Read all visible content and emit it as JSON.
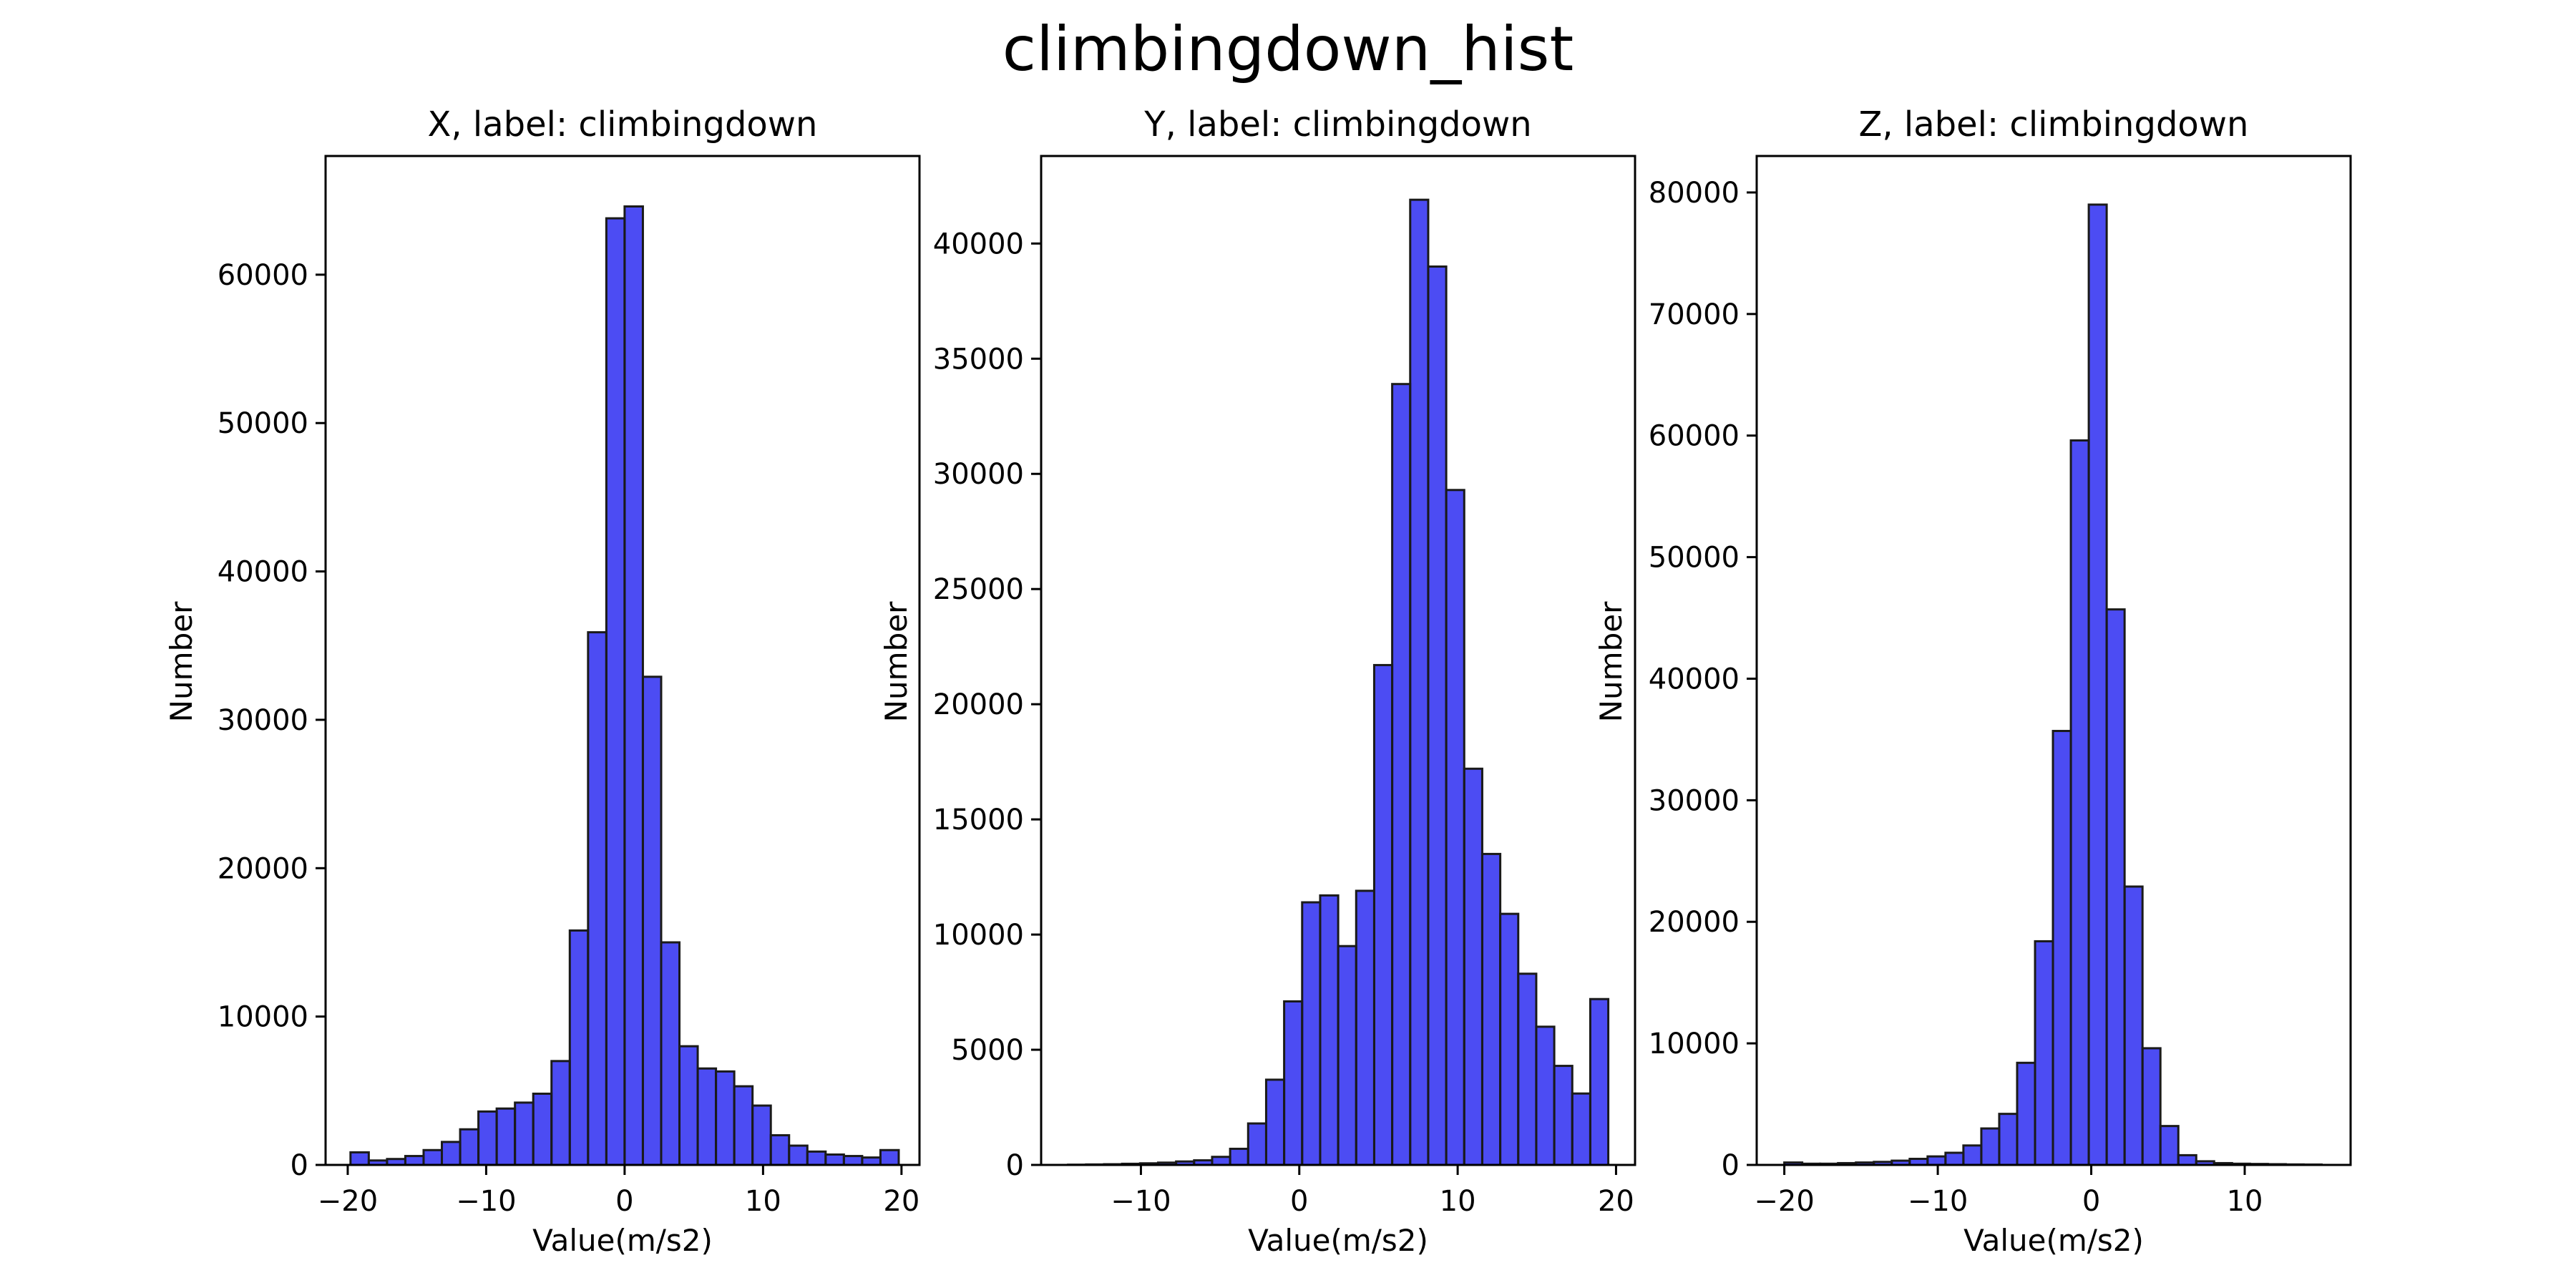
{
  "figure": {
    "title": "climbingdown_hist"
  },
  "chart_data": [
    {
      "type": "bar",
      "title": "X, label: climbingdown",
      "xlabel": "Value(m/s2)",
      "ylabel": "Number",
      "bar_color": "#0000ee",
      "bar_opacity": 0.7,
      "edge_color": "#1a1a1a",
      "xlim": [
        -21.6,
        21.3
      ],
      "ylim": [
        0,
        68000
      ],
      "xticks": [
        -20,
        -10,
        0,
        10,
        20
      ],
      "yticks": [
        0,
        10000,
        20000,
        30000,
        40000,
        50000,
        60000
      ],
      "bin_start": -19.8,
      "bin_width": 1.32,
      "values": [
        850,
        300,
        400,
        600,
        1000,
        1550,
        2400,
        3600,
        3800,
        4200,
        4800,
        7000,
        15800,
        35900,
        63800,
        64600,
        32900,
        15000,
        8000,
        6500,
        6300,
        5300,
        4000,
        2000,
        1300,
        900,
        700,
        600,
        500,
        1000
      ],
      "grid": false,
      "legend": "none"
    },
    {
      "type": "bar",
      "title": "Y, label: climbingdown",
      "xlabel": "Value(m/s2)",
      "ylabel": "Number",
      "bar_color": "#0000ee",
      "bar_opacity": 0.7,
      "edge_color": "#1a1a1a",
      "xlim": [
        -16.3,
        21.2
      ],
      "ylim": [
        0,
        43800
      ],
      "xticks": [
        -10,
        0,
        10,
        20
      ],
      "yticks": [
        0,
        5000,
        10000,
        15000,
        20000,
        25000,
        30000,
        35000,
        40000
      ],
      "bin_start": -14.6,
      "bin_width": 1.137,
      "values": [
        10,
        20,
        30,
        50,
        70,
        100,
        150,
        200,
        350,
        700,
        1800,
        3700,
        7100,
        11400,
        11700,
        9500,
        11900,
        21700,
        33900,
        41900,
        39000,
        29300,
        17200,
        13500,
        10900,
        8300,
        6000,
        4300,
        3100,
        7200
      ],
      "grid": false,
      "legend": "none"
    },
    {
      "type": "bar",
      "title": "Z, label: climbingdown",
      "xlabel": "Value(m/s2)",
      "ylabel": "Number",
      "bar_color": "#0000ee",
      "bar_opacity": 0.7,
      "edge_color": "#1a1a1a",
      "xlim": [
        -21.8,
        16.9
      ],
      "ylim": [
        0,
        83000
      ],
      "xticks": [
        -20,
        -10,
        0,
        10
      ],
      "yticks": [
        0,
        10000,
        20000,
        30000,
        40000,
        50000,
        60000,
        70000,
        80000
      ],
      "bin_start": -20.0,
      "bin_width": 1.167,
      "values": [
        200,
        100,
        100,
        150,
        200,
        250,
        350,
        500,
        700,
        1000,
        1600,
        3000,
        4200,
        8400,
        18400,
        35700,
        59600,
        79000,
        45700,
        22900,
        9600,
        3200,
        800,
        300,
        150,
        100,
        80,
        60,
        40,
        30
      ],
      "grid": false,
      "legend": "none"
    }
  ]
}
